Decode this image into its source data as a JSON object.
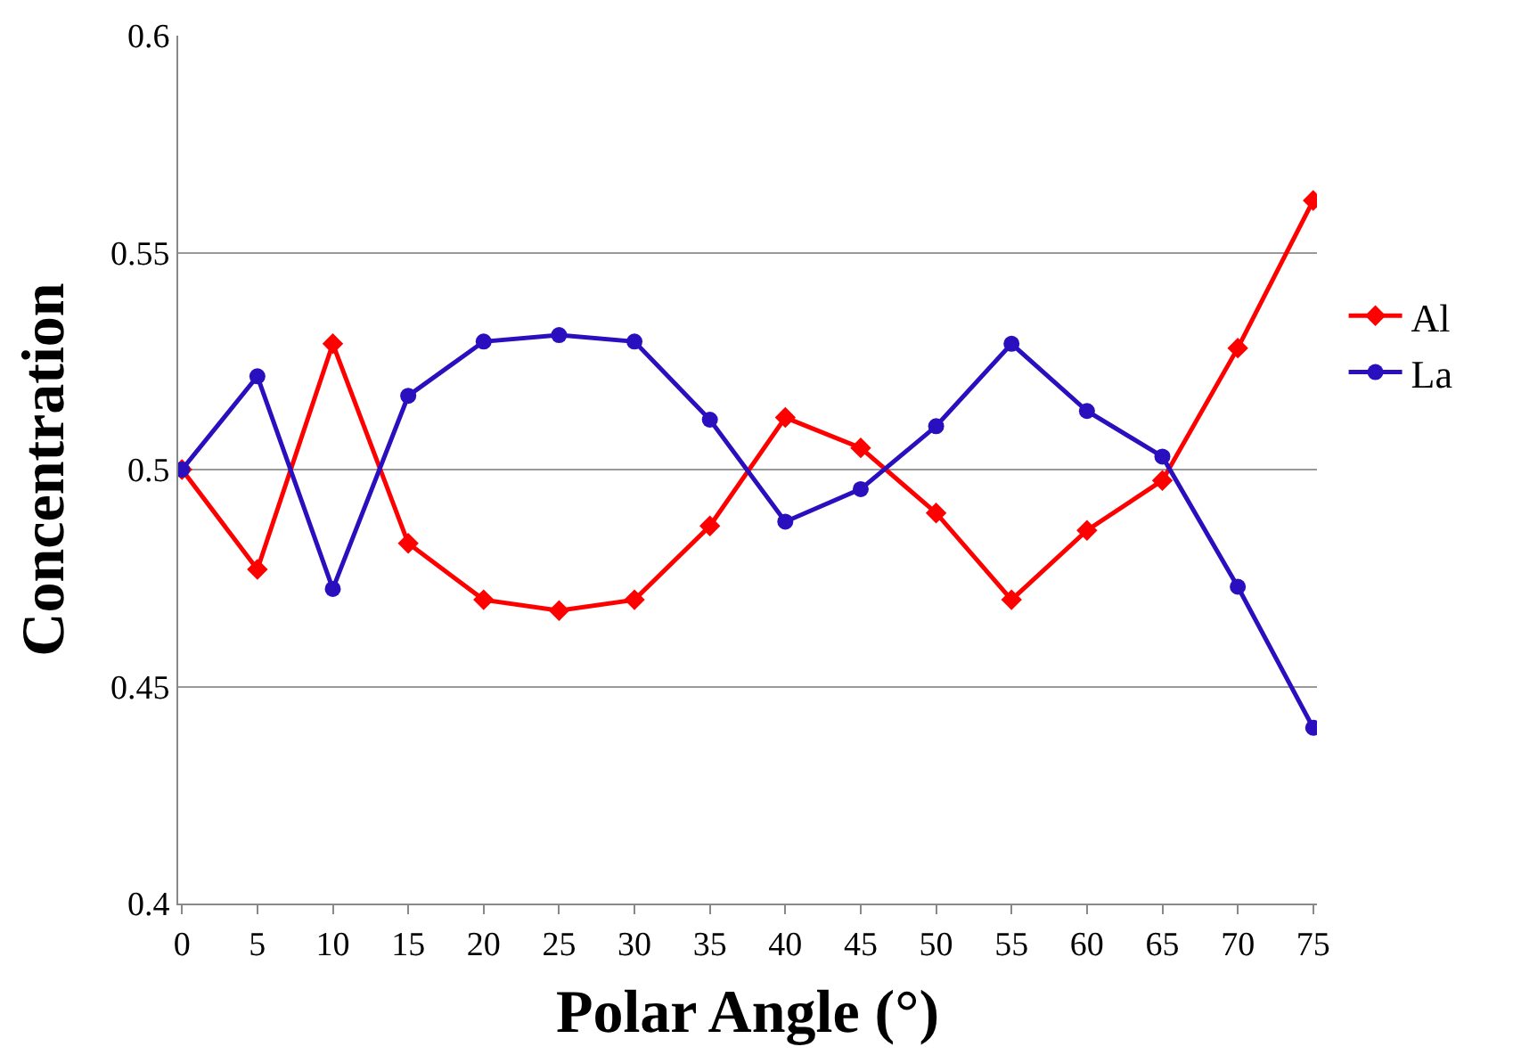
{
  "chart_data": {
    "type": "line",
    "xlabel": "Polar Angle (°)",
    "ylabel": "Concentration",
    "categories": [
      "0",
      "5",
      "10",
      "15",
      "20",
      "25",
      "30",
      "35",
      "40",
      "45",
      "50",
      "55",
      "60",
      "65",
      "70",
      "75"
    ],
    "series": [
      {
        "name": "Al",
        "color": "#ff0000",
        "marker": "diamond",
        "values": [
          0.5,
          0.477,
          0.529,
          0.483,
          0.47,
          0.4675,
          0.47,
          0.487,
          0.512,
          0.505,
          0.49,
          0.47,
          0.486,
          0.4975,
          0.528,
          0.562
        ]
      },
      {
        "name": "La",
        "color": "#2a0fbf",
        "marker": "circle",
        "values": [
          0.5,
          0.5215,
          0.4725,
          0.517,
          0.5295,
          0.531,
          0.5295,
          0.5115,
          0.488,
          0.4955,
          0.51,
          0.529,
          0.5135,
          0.503,
          0.473,
          0.4405
        ]
      }
    ],
    "ylim": [
      0.4,
      0.6
    ],
    "yticks": [
      0.4,
      0.45,
      0.5,
      0.55,
      0.6
    ],
    "grid": "y",
    "legend": "right"
  }
}
